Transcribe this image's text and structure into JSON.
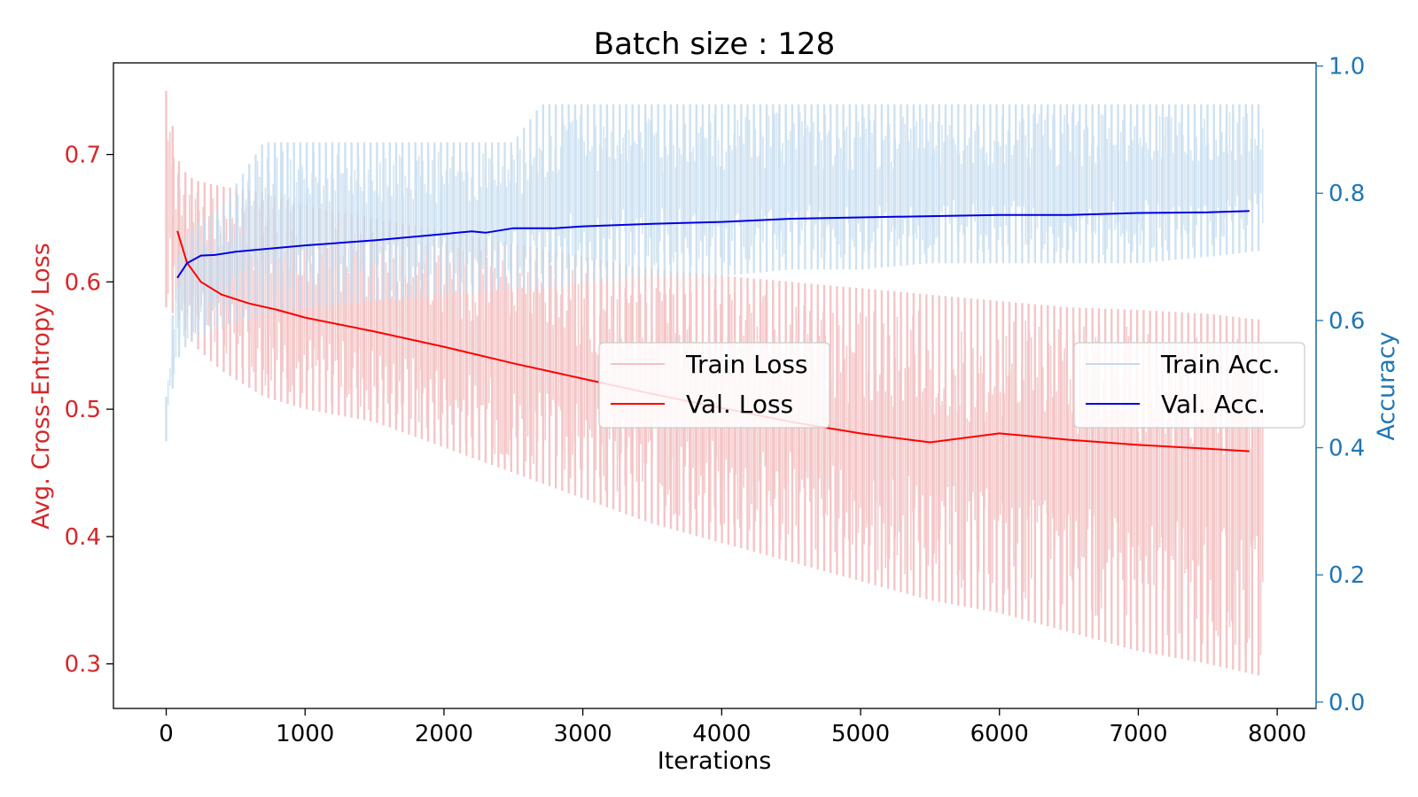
{
  "chart_data": {
    "type": "line",
    "title": "Batch size : 128",
    "xlabel": "Iterations",
    "ylabel_left": "Avg. Cross-Entropy Loss",
    "ylabel_right": "Accuracy",
    "xlim": [
      -380,
      8280
    ],
    "ylim_left": [
      0.265,
      0.772
    ],
    "ylim_right": [
      -0.01,
      1.005
    ],
    "x_ticks": [
      0,
      1000,
      2000,
      3000,
      4000,
      5000,
      6000,
      7000,
      8000
    ],
    "x_tick_labels": [
      "0",
      "1000",
      "2000",
      "3000",
      "4000",
      "5000",
      "6000",
      "7000",
      "8000"
    ],
    "y_left_ticks": [
      0.3,
      0.4,
      0.5,
      0.6,
      0.7
    ],
    "y_left_tick_labels": [
      "0.3",
      "0.4",
      "0.5",
      "0.6",
      "0.7"
    ],
    "y_right_ticks": [
      0.0,
      0.2,
      0.4,
      0.6,
      0.8,
      1.0
    ],
    "y_right_tick_labels": [
      "0.0",
      "0.2",
      "0.4",
      "0.6",
      "0.8",
      "1.0"
    ],
    "grid": false,
    "colors": {
      "left_axis": "#d62728",
      "right_axis": "#1f77b4",
      "train_loss": "#f4c2c4",
      "val_loss": "#ff0000",
      "train_acc": "#c4dbee",
      "val_acc": "#0000e6"
    },
    "series": [
      {
        "name": "Train Loss",
        "axis": "left",
        "kind": "band",
        "x": [
          0,
          100,
          200,
          400,
          700,
          1000,
          1500,
          2000,
          2500,
          3000,
          3500,
          4000,
          4500,
          5000,
          5500,
          6000,
          6500,
          7000,
          7500,
          7900
        ],
        "low": [
          0.58,
          0.57,
          0.55,
          0.53,
          0.51,
          0.5,
          0.49,
          0.47,
          0.45,
          0.43,
          0.41,
          0.395,
          0.38,
          0.365,
          0.35,
          0.34,
          0.325,
          0.31,
          0.3,
          0.29
        ],
        "high": [
          0.75,
          0.69,
          0.68,
          0.675,
          0.67,
          0.66,
          0.65,
          0.64,
          0.63,
          0.62,
          0.61,
          0.605,
          0.6,
          0.595,
          0.59,
          0.585,
          0.58,
          0.578,
          0.575,
          0.57
        ]
      },
      {
        "name": "Val. Loss",
        "axis": "left",
        "kind": "line",
        "x": [
          80,
          150,
          250,
          400,
          600,
          800,
          1000,
          1500,
          2000,
          2500,
          3000,
          3500,
          4000,
          4500,
          5000,
          5500,
          6000,
          6500,
          7000,
          7500,
          7800
        ],
        "y": [
          0.64,
          0.615,
          0.6,
          0.59,
          0.583,
          0.578,
          0.572,
          0.561,
          0.549,
          0.536,
          0.524,
          0.512,
          0.501,
          0.49,
          0.481,
          0.474,
          0.481,
          0.476,
          0.472,
          0.469,
          0.467
        ]
      },
      {
        "name": "Train Acc.",
        "axis": "right",
        "kind": "band",
        "x": [
          0,
          50,
          100,
          200,
          400,
          700,
          1000,
          1500,
          2000,
          2500,
          2700,
          3000,
          3500,
          4000,
          4500,
          5000,
          5500,
          6000,
          6500,
          7000,
          7500,
          7900
        ],
        "low": [
          0.41,
          0.5,
          0.55,
          0.57,
          0.59,
          0.61,
          0.62,
          0.63,
          0.64,
          0.65,
          0.65,
          0.66,
          0.67,
          0.67,
          0.68,
          0.68,
          0.69,
          0.69,
          0.69,
          0.69,
          0.7,
          0.71
        ],
        "high": [
          0.48,
          0.62,
          0.72,
          0.75,
          0.78,
          0.88,
          0.88,
          0.88,
          0.88,
          0.88,
          0.94,
          0.94,
          0.94,
          0.94,
          0.94,
          0.94,
          0.94,
          0.94,
          0.94,
          0.94,
          0.94,
          0.94
        ]
      },
      {
        "name": "Val. Acc.",
        "axis": "right",
        "kind": "line",
        "x": [
          80,
          150,
          250,
          350,
          500,
          700,
          1000,
          1500,
          2000,
          2200,
          2300,
          2500,
          2800,
          3000,
          3500,
          4000,
          4500,
          5000,
          5500,
          6000,
          6500,
          7000,
          7500,
          7800
        ],
        "y": [
          0.667,
          0.69,
          0.702,
          0.703,
          0.708,
          0.712,
          0.718,
          0.726,
          0.736,
          0.74,
          0.738,
          0.745,
          0.745,
          0.748,
          0.752,
          0.755,
          0.76,
          0.762,
          0.764,
          0.766,
          0.766,
          0.769,
          0.77,
          0.772
        ]
      }
    ],
    "legend_left": {
      "position": "center",
      "entries": [
        "Train Loss",
        "Val. Loss"
      ]
    },
    "legend_right": {
      "position": "center-right",
      "entries": [
        "Train Acc.",
        "Val. Acc."
      ]
    }
  }
}
